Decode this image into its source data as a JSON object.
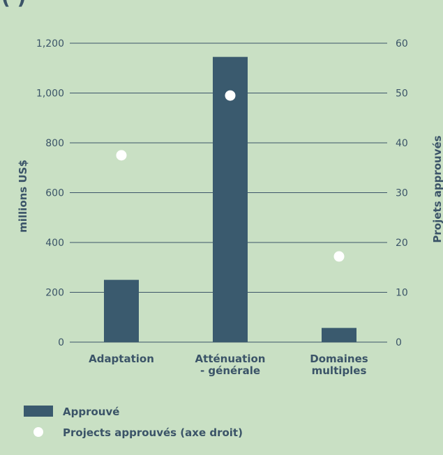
{
  "chart_data": {
    "type": "bar",
    "title_fragment": "(                )",
    "categories": [
      [
        "Adaptation"
      ],
      [
        "Atténuation",
        "- générale"
      ],
      [
        "Domaines",
        "multiples"
      ]
    ],
    "series": [
      {
        "name": "Approuvé",
        "axis": "left",
        "type": "bar",
        "values": [
          250,
          1145,
          57
        ],
        "color": "#3a5a6e"
      },
      {
        "name": "Projects approuvés (axe droit)",
        "axis": "right",
        "type": "scatter",
        "values": [
          37.5,
          49.5,
          17.2
        ],
        "color": "#ffffff"
      }
    ],
    "ylabel": "millions US$",
    "y2label": "Projets approuvés",
    "ylim": [
      0,
      1200
    ],
    "y2lim": [
      0,
      60
    ],
    "yticks": [
      0,
      200,
      400,
      600,
      800,
      1000,
      1200
    ],
    "y2ticks": [
      0,
      10,
      20,
      30,
      40,
      50,
      60
    ],
    "grid": true,
    "legend_position": "bottom-left"
  }
}
